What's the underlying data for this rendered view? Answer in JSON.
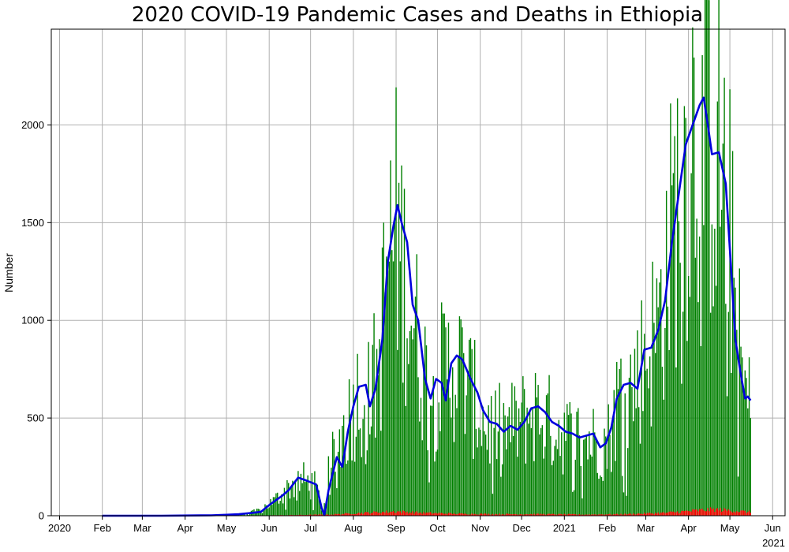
{
  "chart_data": {
    "type": "bar",
    "title": "2020 COVID-19 Pandemic Cases and Deaths in Ethiopia",
    "xlabel": "",
    "ylabel": "Number",
    "x_tick_labels": [
      "2020",
      "Feb",
      "Mar",
      "Apr",
      "May",
      "Jun",
      "Jul",
      "Aug",
      "Sep",
      "Oct",
      "Nov",
      "Dec",
      "2021",
      "Feb",
      "Mar",
      "Apr",
      "May",
      "Jun"
    ],
    "x_offset_label": "2021",
    "y_ticks": [
      0,
      500,
      1000,
      1500,
      2000
    ],
    "ylim": [
      0,
      2490
    ],
    "xlim": [
      "2019-12-26",
      "2021-06-10"
    ],
    "grid": true,
    "series": [
      {
        "kind": "bar",
        "color": "#008000",
        "start_date": "2020-02-01",
        "anchors": [
          [
            "2020-02-01",
            0
          ],
          [
            "2020-04-15",
            2
          ],
          [
            "2020-05-15",
            10
          ],
          [
            "2020-05-25",
            30
          ],
          [
            "2020-06-05",
            80
          ],
          [
            "2020-06-15",
            150
          ],
          [
            "2020-06-25",
            190
          ],
          [
            "2020-07-05",
            150
          ],
          [
            "2020-07-10",
            20
          ],
          [
            "2020-07-15",
            250
          ],
          [
            "2020-07-25",
            450
          ],
          [
            "2020-08-05",
            650
          ],
          [
            "2020-08-12",
            620
          ],
          [
            "2020-08-20",
            800
          ],
          [
            "2020-08-25",
            1300
          ],
          [
            "2020-09-01",
            1500
          ],
          [
            "2020-09-10",
            1150
          ],
          [
            "2020-09-20",
            800
          ],
          [
            "2020-09-25",
            650
          ],
          [
            "2020-10-05",
            750
          ],
          [
            "2020-10-15",
            800
          ],
          [
            "2020-10-25",
            650
          ],
          [
            "2020-11-05",
            470
          ],
          [
            "2020-11-20",
            450
          ],
          [
            "2020-12-01",
            500
          ],
          [
            "2020-12-10",
            550
          ],
          [
            "2020-12-25",
            470
          ],
          [
            "2021-01-05",
            420
          ],
          [
            "2021-01-20",
            400
          ],
          [
            "2021-02-01",
            380
          ],
          [
            "2021-02-10",
            650
          ],
          [
            "2021-02-20",
            680
          ],
          [
            "2021-03-01",
            850
          ],
          [
            "2021-03-10",
            1000
          ],
          [
            "2021-03-20",
            1500
          ],
          [
            "2021-03-28",
            1800
          ],
          [
            "2021-04-05",
            2050
          ],
          [
            "2021-04-15",
            2100
          ],
          [
            "2021-04-25",
            1850
          ],
          [
            "2021-05-01",
            1500
          ],
          [
            "2021-05-05",
            1100
          ],
          [
            "2021-05-10",
            700
          ],
          [
            "2021-05-16",
            550
          ]
        ]
      },
      {
        "kind": "bar",
        "color": "#ff0000",
        "start_date": "2020-02-01",
        "anchors": [
          [
            "2020-02-01",
            0
          ],
          [
            "2020-05-01",
            0
          ],
          [
            "2020-06-15",
            3
          ],
          [
            "2020-07-15",
            6
          ],
          [
            "2020-08-10",
            15
          ],
          [
            "2020-09-01",
            22
          ],
          [
            "2020-09-20",
            15
          ],
          [
            "2020-10-15",
            10
          ],
          [
            "2020-11-15",
            8
          ],
          [
            "2020-12-15",
            8
          ],
          [
            "2021-01-15",
            6
          ],
          [
            "2021-02-15",
            8
          ],
          [
            "2021-03-15",
            15
          ],
          [
            "2021-04-10",
            28
          ],
          [
            "2021-04-20",
            32
          ],
          [
            "2021-05-05",
            25
          ],
          [
            "2021-05-16",
            18
          ]
        ]
      },
      {
        "kind": "line",
        "color": "#0000dd",
        "points": [
          [
            "2020-02-01",
            0
          ],
          [
            "2020-03-15",
            0
          ],
          [
            "2020-04-20",
            2
          ],
          [
            "2020-05-01",
            5
          ],
          [
            "2020-05-10",
            8
          ],
          [
            "2020-05-20",
            15
          ],
          [
            "2020-05-26",
            20
          ],
          [
            "2020-06-02",
            60
          ],
          [
            "2020-06-10",
            100
          ],
          [
            "2020-06-15",
            130
          ],
          [
            "2020-06-22",
            195
          ],
          [
            "2020-06-28",
            180
          ],
          [
            "2020-07-05",
            160
          ],
          [
            "2020-07-09",
            40
          ],
          [
            "2020-07-11",
            5
          ],
          [
            "2020-07-14",
            130
          ],
          [
            "2020-07-20",
            300
          ],
          [
            "2020-07-24",
            250
          ],
          [
            "2020-07-28",
            430
          ],
          [
            "2020-08-01",
            560
          ],
          [
            "2020-08-05",
            660
          ],
          [
            "2020-08-10",
            670
          ],
          [
            "2020-08-13",
            560
          ],
          [
            "2020-08-17",
            650
          ],
          [
            "2020-08-22",
            900
          ],
          [
            "2020-08-26",
            1300
          ],
          [
            "2020-08-30",
            1480
          ],
          [
            "2020-09-02",
            1590
          ],
          [
            "2020-09-05",
            1500
          ],
          [
            "2020-09-09",
            1400
          ],
          [
            "2020-09-13",
            1080
          ],
          [
            "2020-09-17",
            1000
          ],
          [
            "2020-09-22",
            700
          ],
          [
            "2020-09-26",
            600
          ],
          [
            "2020-09-30",
            700
          ],
          [
            "2020-10-04",
            680
          ],
          [
            "2020-10-07",
            590
          ],
          [
            "2020-10-11",
            780
          ],
          [
            "2020-10-15",
            820
          ],
          [
            "2020-10-19",
            800
          ],
          [
            "2020-10-25",
            700
          ],
          [
            "2020-10-30",
            630
          ],
          [
            "2020-11-03",
            540
          ],
          [
            "2020-11-08",
            480
          ],
          [
            "2020-11-13",
            470
          ],
          [
            "2020-11-18",
            430
          ],
          [
            "2020-11-23",
            460
          ],
          [
            "2020-11-28",
            440
          ],
          [
            "2020-12-03",
            480
          ],
          [
            "2020-12-08",
            550
          ],
          [
            "2020-12-13",
            560
          ],
          [
            "2020-12-18",
            530
          ],
          [
            "2020-12-23",
            480
          ],
          [
            "2020-12-28",
            460
          ],
          [
            "2021-01-02",
            430
          ],
          [
            "2021-01-07",
            420
          ],
          [
            "2021-01-12",
            400
          ],
          [
            "2021-01-17",
            410
          ],
          [
            "2021-01-22",
            420
          ],
          [
            "2021-01-27",
            350
          ],
          [
            "2021-01-31",
            370
          ],
          [
            "2021-02-04",
            450
          ],
          [
            "2021-02-08",
            600
          ],
          [
            "2021-02-13",
            670
          ],
          [
            "2021-02-18",
            680
          ],
          [
            "2021-02-23",
            650
          ],
          [
            "2021-02-28",
            850
          ],
          [
            "2021-03-05",
            860
          ],
          [
            "2021-03-10",
            950
          ],
          [
            "2021-03-15",
            1100
          ],
          [
            "2021-03-20",
            1400
          ],
          [
            "2021-03-25",
            1650
          ],
          [
            "2021-03-30",
            1900
          ],
          [
            "2021-04-04",
            2000
          ],
          [
            "2021-04-09",
            2100
          ],
          [
            "2021-04-12",
            2140
          ],
          [
            "2021-04-15",
            2000
          ],
          [
            "2021-04-18",
            1850
          ],
          [
            "2021-04-23",
            1860
          ],
          [
            "2021-04-28",
            1700
          ],
          [
            "2021-05-02",
            1250
          ],
          [
            "2021-05-05",
            900
          ],
          [
            "2021-05-09",
            720
          ],
          [
            "2021-05-12",
            600
          ],
          [
            "2021-05-14",
            610
          ],
          [
            "2021-05-16",
            590
          ]
        ]
      }
    ]
  }
}
